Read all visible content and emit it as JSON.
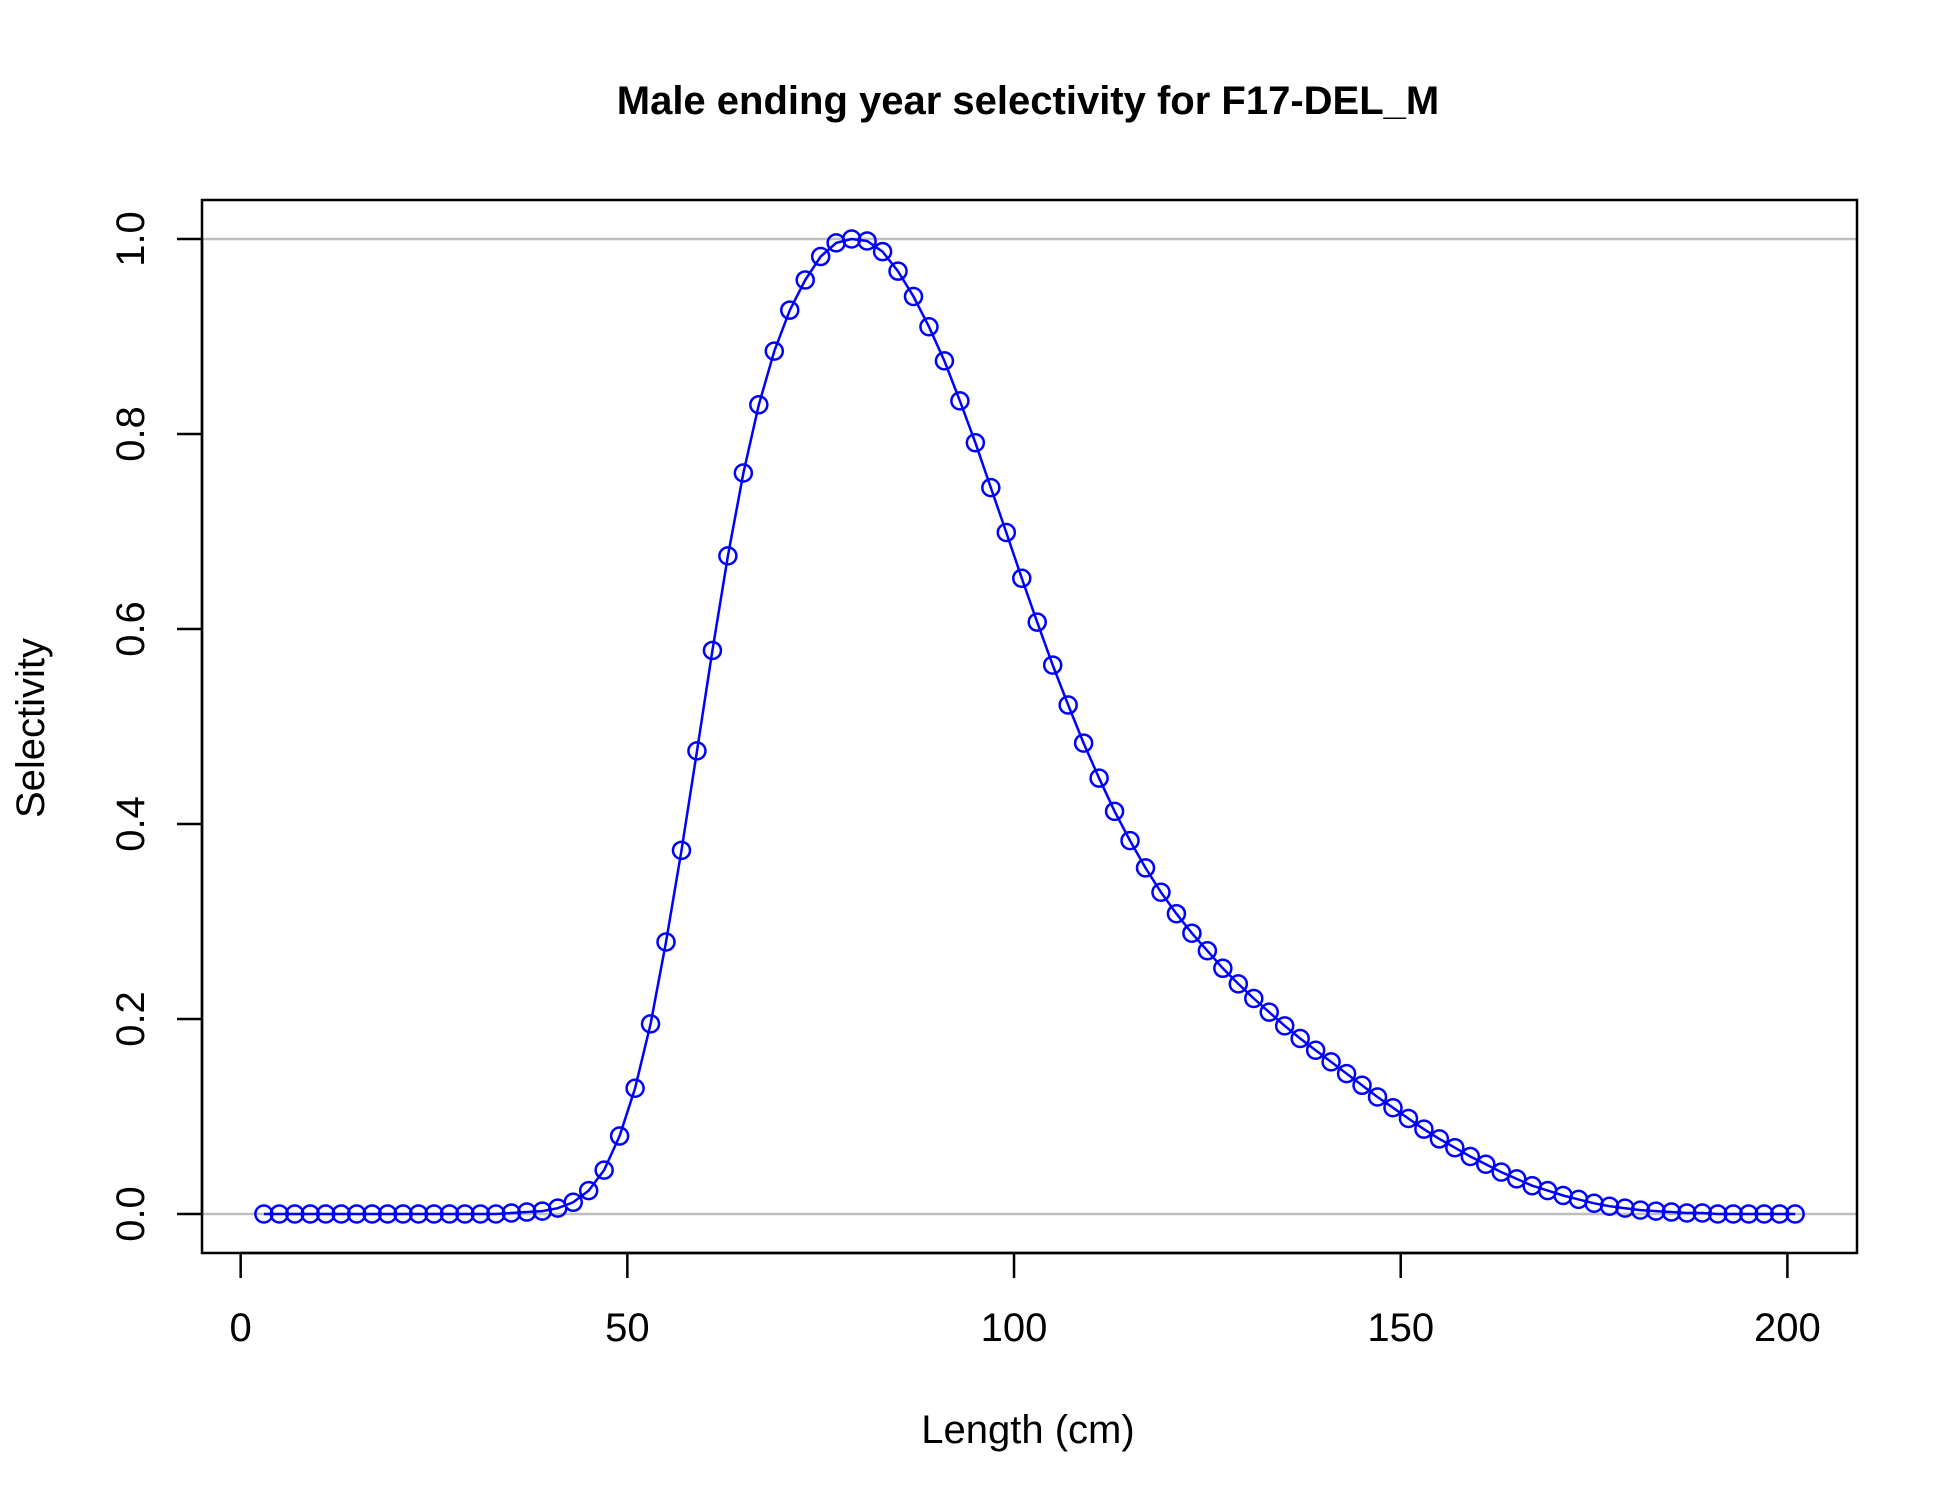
{
  "chart_data": {
    "type": "line",
    "title": "Male ending year selectivity for F17-DEL_M",
    "xlabel": "Length (cm)",
    "ylabel": "Selectivity",
    "xlim": [
      -5,
      209
    ],
    "ylim": [
      -0.04,
      1.04
    ],
    "x_ticks": [
      "0",
      "50",
      "100",
      "150",
      "200"
    ],
    "x_tick_values": [
      0,
      50,
      100,
      150,
      200
    ],
    "y_ticks": [
      "0.0",
      "0.2",
      "0.4",
      "0.6",
      "0.8",
      "1.0"
    ],
    "y_tick_values": [
      0,
      0.2,
      0.4,
      0.6,
      0.8,
      1.0
    ],
    "reference_lines": [
      0,
      1
    ],
    "reference_line_color": "#bebebe",
    "series_color": "#0000ff",
    "marker": "open-circle",
    "grid": false,
    "legend": "none",
    "series": [
      {
        "x": [
          3,
          5,
          7,
          9,
          11,
          13,
          15,
          17,
          19,
          21,
          23,
          25,
          27,
          29,
          31,
          33,
          35,
          37,
          39,
          41,
          43,
          45,
          47,
          49,
          51,
          53,
          55,
          57,
          59,
          61,
          63,
          65,
          67,
          69,
          71,
          73,
          75,
          77,
          79,
          81,
          83,
          85,
          87,
          89,
          91,
          93,
          95,
          97,
          99,
          101,
          103,
          105,
          107,
          109,
          111,
          113,
          115,
          117,
          119,
          121,
          123,
          125,
          127,
          129,
          131,
          133,
          135,
          137,
          139,
          141,
          143,
          145,
          147,
          149,
          151,
          153,
          155,
          157,
          159,
          161,
          163,
          165,
          167,
          169,
          171,
          173,
          175,
          177,
          179,
          181,
          183,
          185,
          187,
          189,
          191,
          193,
          195,
          197,
          199,
          201
        ],
        "y": [
          0,
          0,
          0,
          0,
          0,
          0,
          0,
          0,
          0,
          0,
          0,
          0,
          0,
          0,
          0,
          0,
          0.001,
          0.002,
          0.003,
          0.006,
          0.012,
          0.024,
          0.045,
          0.08,
          0.129,
          0.195,
          0.279,
          0.373,
          0.475,
          0.578,
          0.675,
          0.76,
          0.83,
          0.885,
          0.927,
          0.958,
          0.982,
          0.996,
          1.0,
          0.998,
          0.987,
          0.967,
          0.941,
          0.91,
          0.875,
          0.834,
          0.791,
          0.745,
          0.699,
          0.652,
          0.607,
          0.563,
          0.522,
          0.483,
          0.447,
          0.413,
          0.383,
          0.355,
          0.33,
          0.308,
          0.288,
          0.27,
          0.252,
          0.236,
          0.221,
          0.207,
          0.193,
          0.18,
          0.168,
          0.156,
          0.144,
          0.132,
          0.12,
          0.109,
          0.098,
          0.087,
          0.077,
          0.068,
          0.059,
          0.051,
          0.043,
          0.036,
          0.029,
          0.024,
          0.019,
          0.015,
          0.011,
          0.008,
          0.006,
          0.004,
          0.003,
          0.002,
          0.001,
          0.001,
          0,
          0,
          0,
          0,
          0,
          0
        ]
      }
    ]
  }
}
